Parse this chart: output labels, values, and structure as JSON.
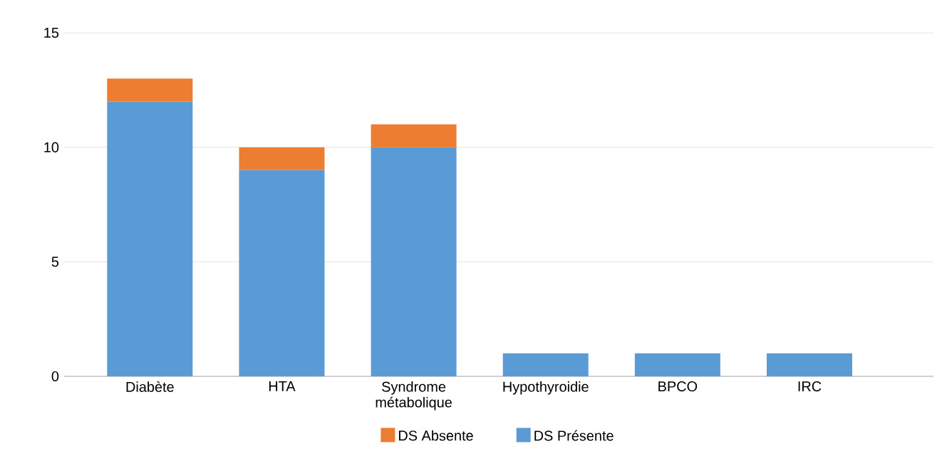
{
  "chart_data": {
    "type": "bar",
    "stacked": true,
    "categories": [
      "Diabète",
      "HTA",
      "Syndrome métabolique",
      "Hypothyroidie",
      "BPCO",
      "IRC"
    ],
    "series": [
      {
        "name": "DS Présente",
        "color": "#5b9bd5",
        "values": [
          12,
          9,
          10,
          1,
          1,
          1
        ]
      },
      {
        "name": "DS Absente",
        "color": "#ed7d31",
        "values": [
          1,
          1,
          1,
          0,
          0,
          0
        ]
      }
    ],
    "ylim": [
      0,
      15
    ],
    "yticks": [
      0,
      5,
      10,
      15
    ],
    "grid": "y",
    "legend": "bottom"
  }
}
